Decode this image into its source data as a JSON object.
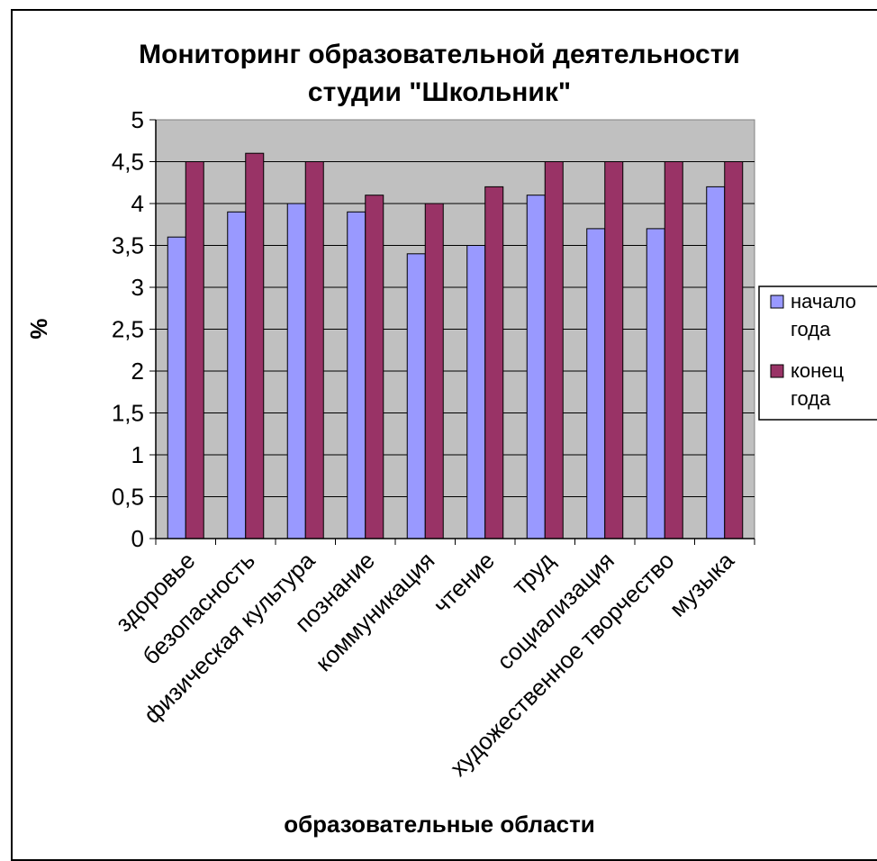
{
  "chart_data": {
    "type": "bar",
    "title_lines": [
      "Мониторинг образовательной деятельности",
      "студии \"Школьник\""
    ],
    "xlabel": "образовательные области",
    "ylabel": "%",
    "ylim": [
      0,
      5
    ],
    "yticks": [
      "0",
      "0,5",
      "1",
      "1,5",
      "2",
      "2,5",
      "3",
      "3,5",
      "4",
      "4,5",
      "5"
    ],
    "grid": true,
    "legend_position": "right",
    "categories": [
      "здоровье",
      "безопасность",
      "физическая культура",
      "познание",
      "коммуникация",
      "чтение",
      "труд",
      "социализация",
      "художественное творчество",
      "музыка"
    ],
    "series": [
      {
        "name": "начало года",
        "name_lines": [
          "начало",
          "года"
        ],
        "color": "#9999ff",
        "values": [
          3.6,
          3.9,
          4.0,
          3.9,
          3.4,
          3.5,
          4.1,
          3.7,
          3.7,
          4.2
        ]
      },
      {
        "name": "конец года",
        "name_lines": [
          "конец",
          "года"
        ],
        "color": "#993366",
        "values": [
          4.5,
          4.6,
          4.5,
          4.1,
          4.0,
          4.2,
          4.5,
          4.5,
          4.5,
          4.5
        ]
      }
    ],
    "plot_background": "#c0c0c0"
  }
}
